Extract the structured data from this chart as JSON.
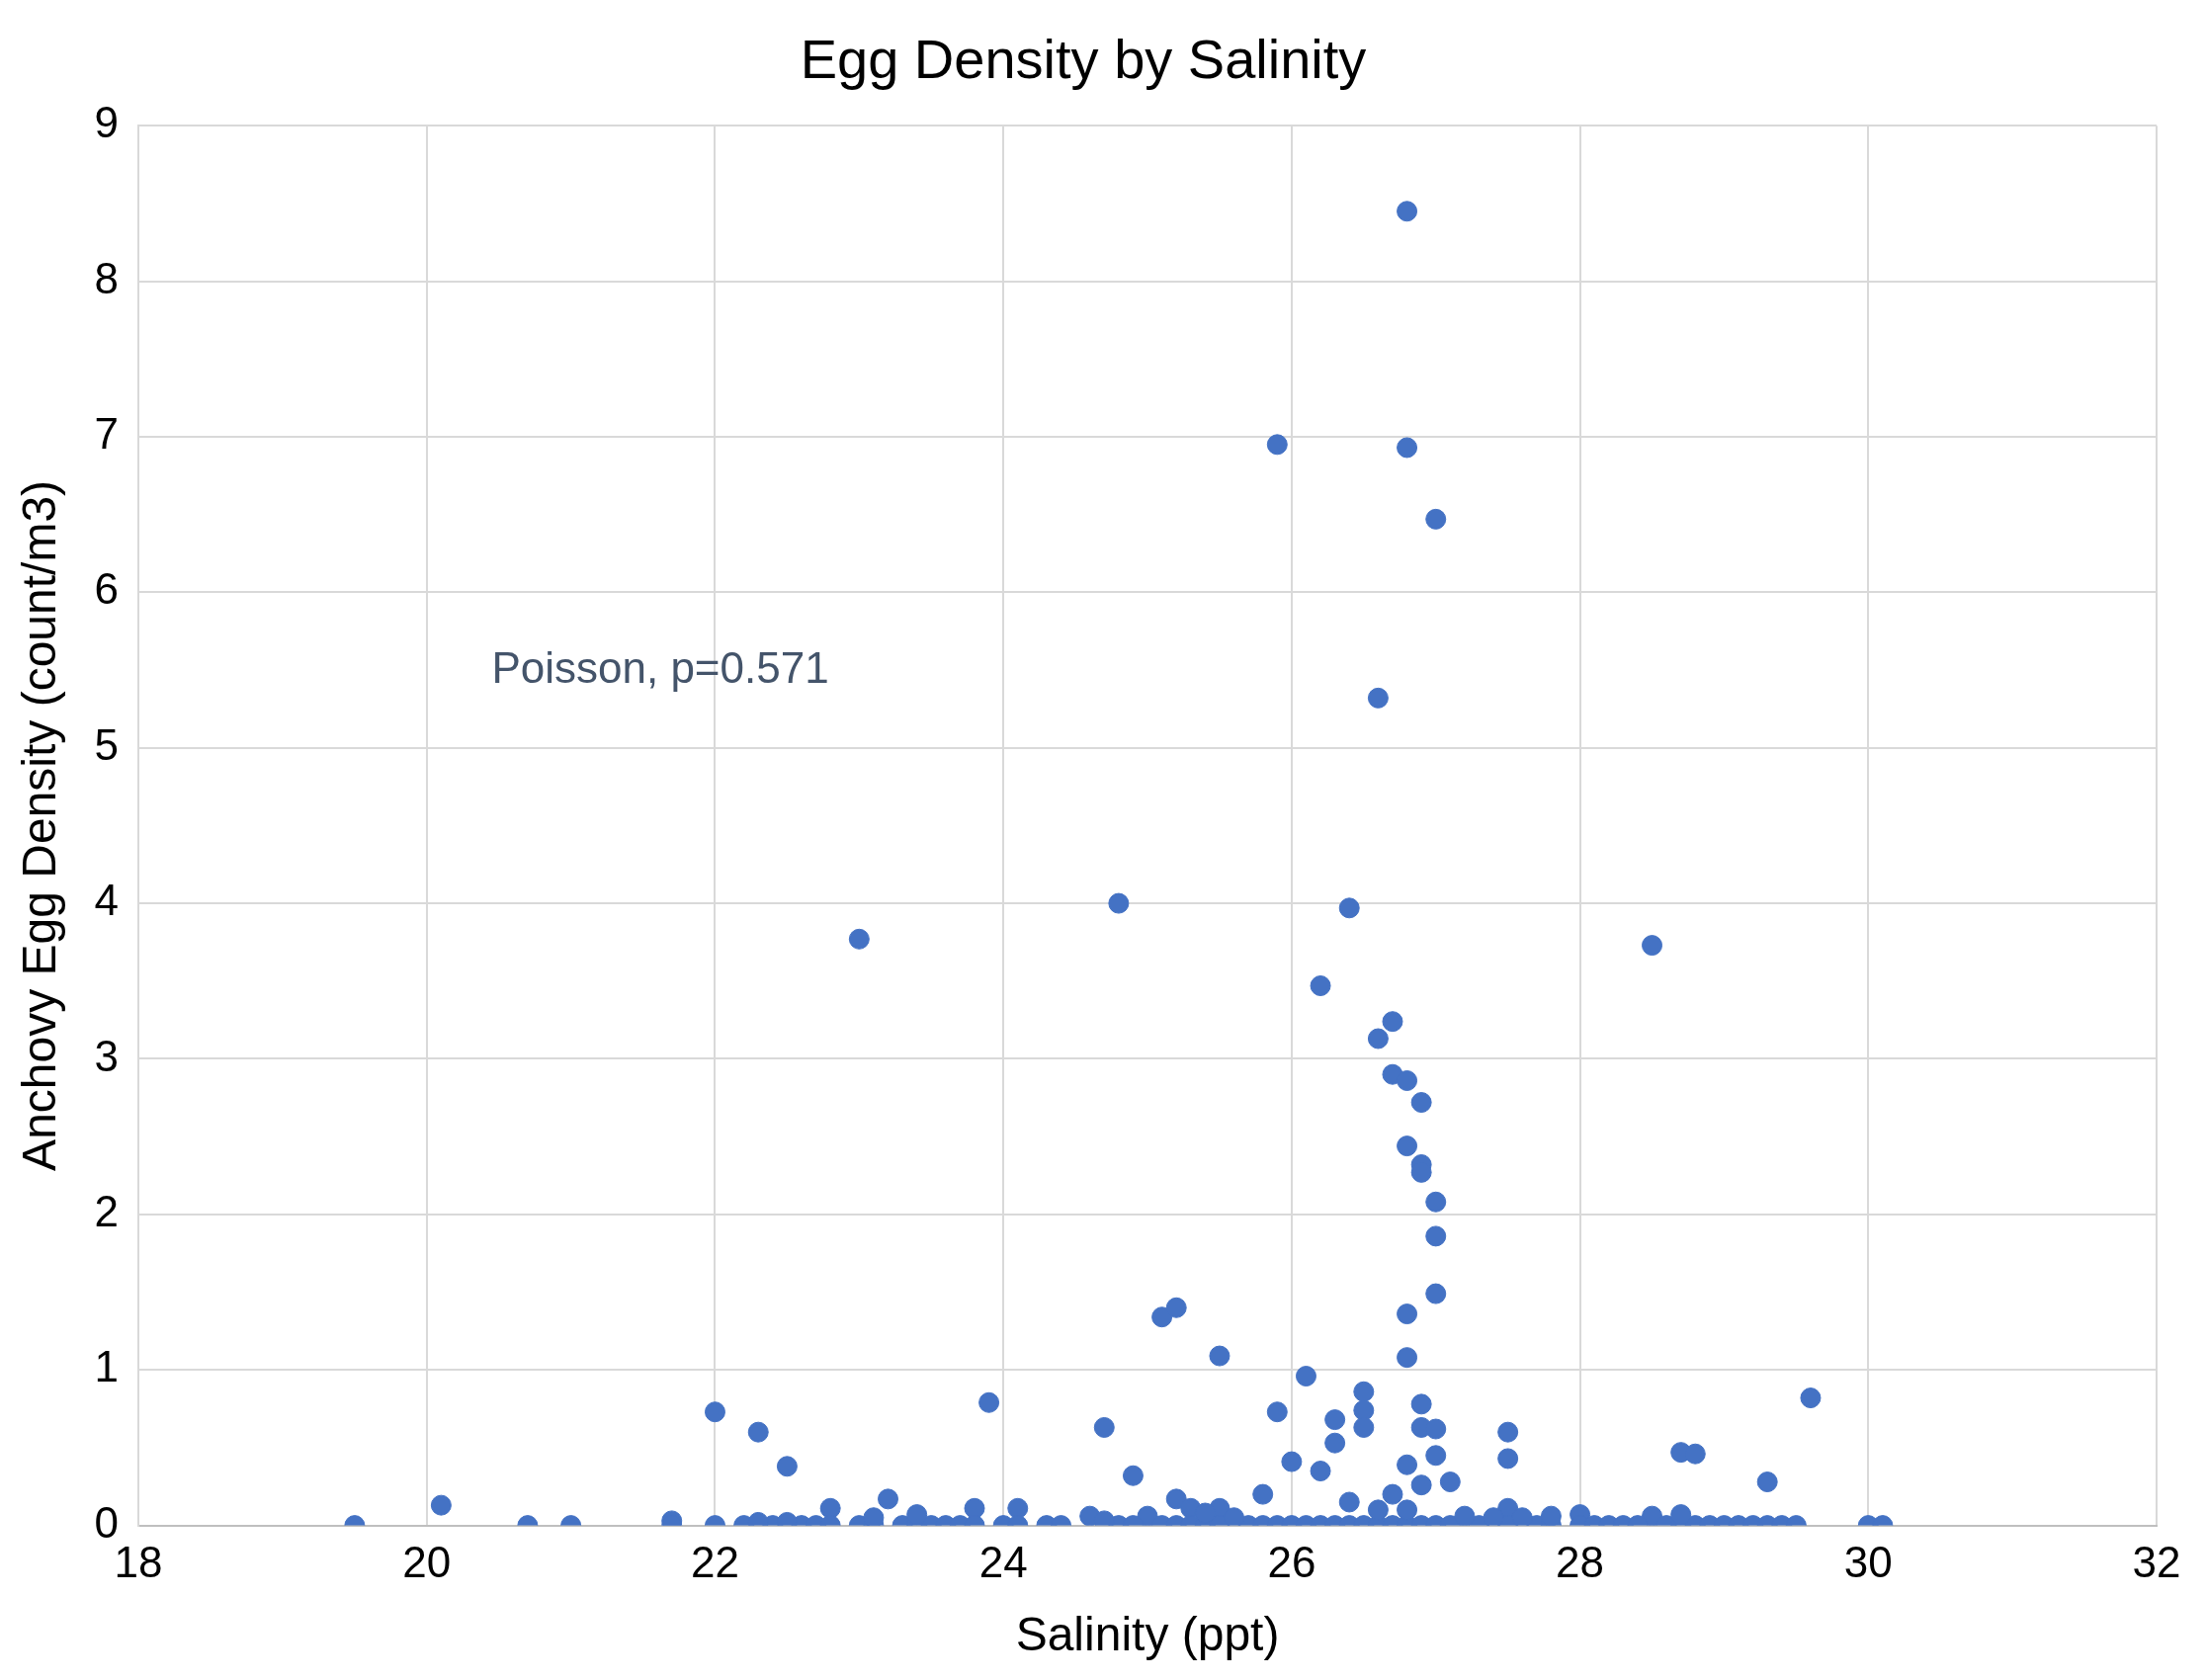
{
  "chart_data": {
    "type": "scatter",
    "title": "Egg Density by Salinity",
    "xlabel": "Salinity (ppt)",
    "ylabel": "Anchovy Egg Density (count/m3)",
    "annotations": [
      "Poisson, p=0.571"
    ],
    "xlim": [
      18,
      32
    ],
    "xticks": [
      18,
      20,
      22,
      24,
      26,
      28,
      30,
      32
    ],
    "ylim": [
      0,
      9
    ],
    "yticks": [
      0,
      1,
      2,
      3,
      4,
      5,
      6,
      7,
      8,
      9
    ],
    "grid": true,
    "marker": "circle",
    "series": [
      {
        "color": "#4472c4",
        "x": [
          19.5,
          20.1,
          20.7,
          21.0,
          21.7,
          21.7,
          22.0,
          22.0,
          22.3,
          22.5,
          22.8,
          23.0,
          23.2,
          23.8,
          23.9,
          24.1,
          24.6,
          24.7,
          24.8,
          24.9,
          25.0,
          25.1,
          25.2,
          25.2,
          25.3,
          25.5,
          25.5,
          25.8,
          25.9,
          25.9,
          26.0,
          26.1,
          26.2,
          26.2,
          26.3,
          26.3,
          26.4,
          26.4,
          26.5,
          26.5,
          26.5,
          26.6,
          26.6,
          26.7,
          26.7,
          26.8,
          26.8,
          26.8,
          26.8,
          26.8,
          26.8,
          26.8,
          26.9,
          26.9,
          26.9,
          26.9,
          26.9,
          26.9,
          27.0,
          27.0,
          27.0,
          27.0,
          27.0,
          27.0,
          27.1,
          27.5,
          27.5,
          27.5,
          28.0,
          28.5,
          28.5,
          28.7,
          28.8,
          29.3,
          29.6,
          30.0,
          30.1,
          22.2,
          22.4,
          22.6,
          22.7,
          22.8,
          23.0,
          23.1,
          23.3,
          23.4,
          23.5,
          23.6,
          23.7,
          23.8,
          24.0,
          24.1,
          24.3,
          24.4,
          24.8,
          24.9,
          25.1,
          25.2,
          25.3,
          25.4,
          25.5,
          25.7,
          25.8,
          25.9,
          26.0,
          26.1,
          26.2,
          26.3,
          26.4,
          26.5,
          26.6,
          26.7,
          26.8,
          26.9,
          27.0,
          27.1,
          27.3,
          27.5,
          27.7,
          27.8,
          28.0,
          28.1,
          28.2,
          28.3,
          28.4,
          28.6,
          28.7,
          28.8,
          28.9,
          29.0,
          29.1,
          29.2,
          29.3,
          29.4,
          29.5,
          23.1,
          23.4,
          24.7,
          25.4,
          25.6,
          26.7,
          26.8,
          26.6,
          27.2,
          27.4,
          27.6,
          27.8,
          28.7,
          22.3,
          22.5
        ],
        "values": [
          0,
          0.13,
          0,
          0,
          0.03,
          0,
          0.73,
          0,
          0.6,
          0.38,
          0.11,
          3.77,
          0.17,
          0.11,
          0.79,
          0.11,
          0.06,
          0.63,
          4.0,
          0.32,
          0.06,
          1.34,
          1.4,
          0.17,
          0.11,
          1.09,
          0.11,
          0.2,
          6.95,
          0.73,
          0.41,
          0.96,
          3.47,
          0.35,
          0.68,
          0.53,
          3.97,
          0.15,
          0.86,
          0.74,
          0.63,
          5.32,
          3.13,
          3.24,
          2.9,
          8.45,
          6.93,
          2.86,
          2.44,
          1.36,
          1.08,
          0.39,
          2.72,
          2.32,
          2.27,
          0.78,
          0.63,
          0.26,
          6.47,
          2.08,
          1.86,
          1.49,
          0.62,
          0.45,
          0.28,
          0.6,
          0.43,
          0.11,
          0.07,
          3.73,
          0.06,
          0.47,
          0.46,
          0.28,
          0.82,
          0,
          0,
          0,
          0,
          0,
          0,
          0,
          0,
          0,
          0,
          0,
          0,
          0,
          0,
          0,
          0,
          0,
          0,
          0,
          0,
          0,
          0,
          0,
          0,
          0,
          0,
          0,
          0,
          0,
          0,
          0,
          0,
          0,
          0,
          0,
          0,
          0,
          0,
          0,
          0,
          0,
          0,
          0,
          0,
          0,
          0,
          0,
          0,
          0,
          0,
          0,
          0,
          0,
          0,
          0,
          0,
          0,
          0,
          0,
          0,
          0.05,
          0.07,
          0.03,
          0.08,
          0.05,
          0.2,
          0.1,
          0.1,
          0.06,
          0.05,
          0.05,
          0.06,
          0.07,
          0.02,
          0.02
        ]
      }
    ]
  }
}
